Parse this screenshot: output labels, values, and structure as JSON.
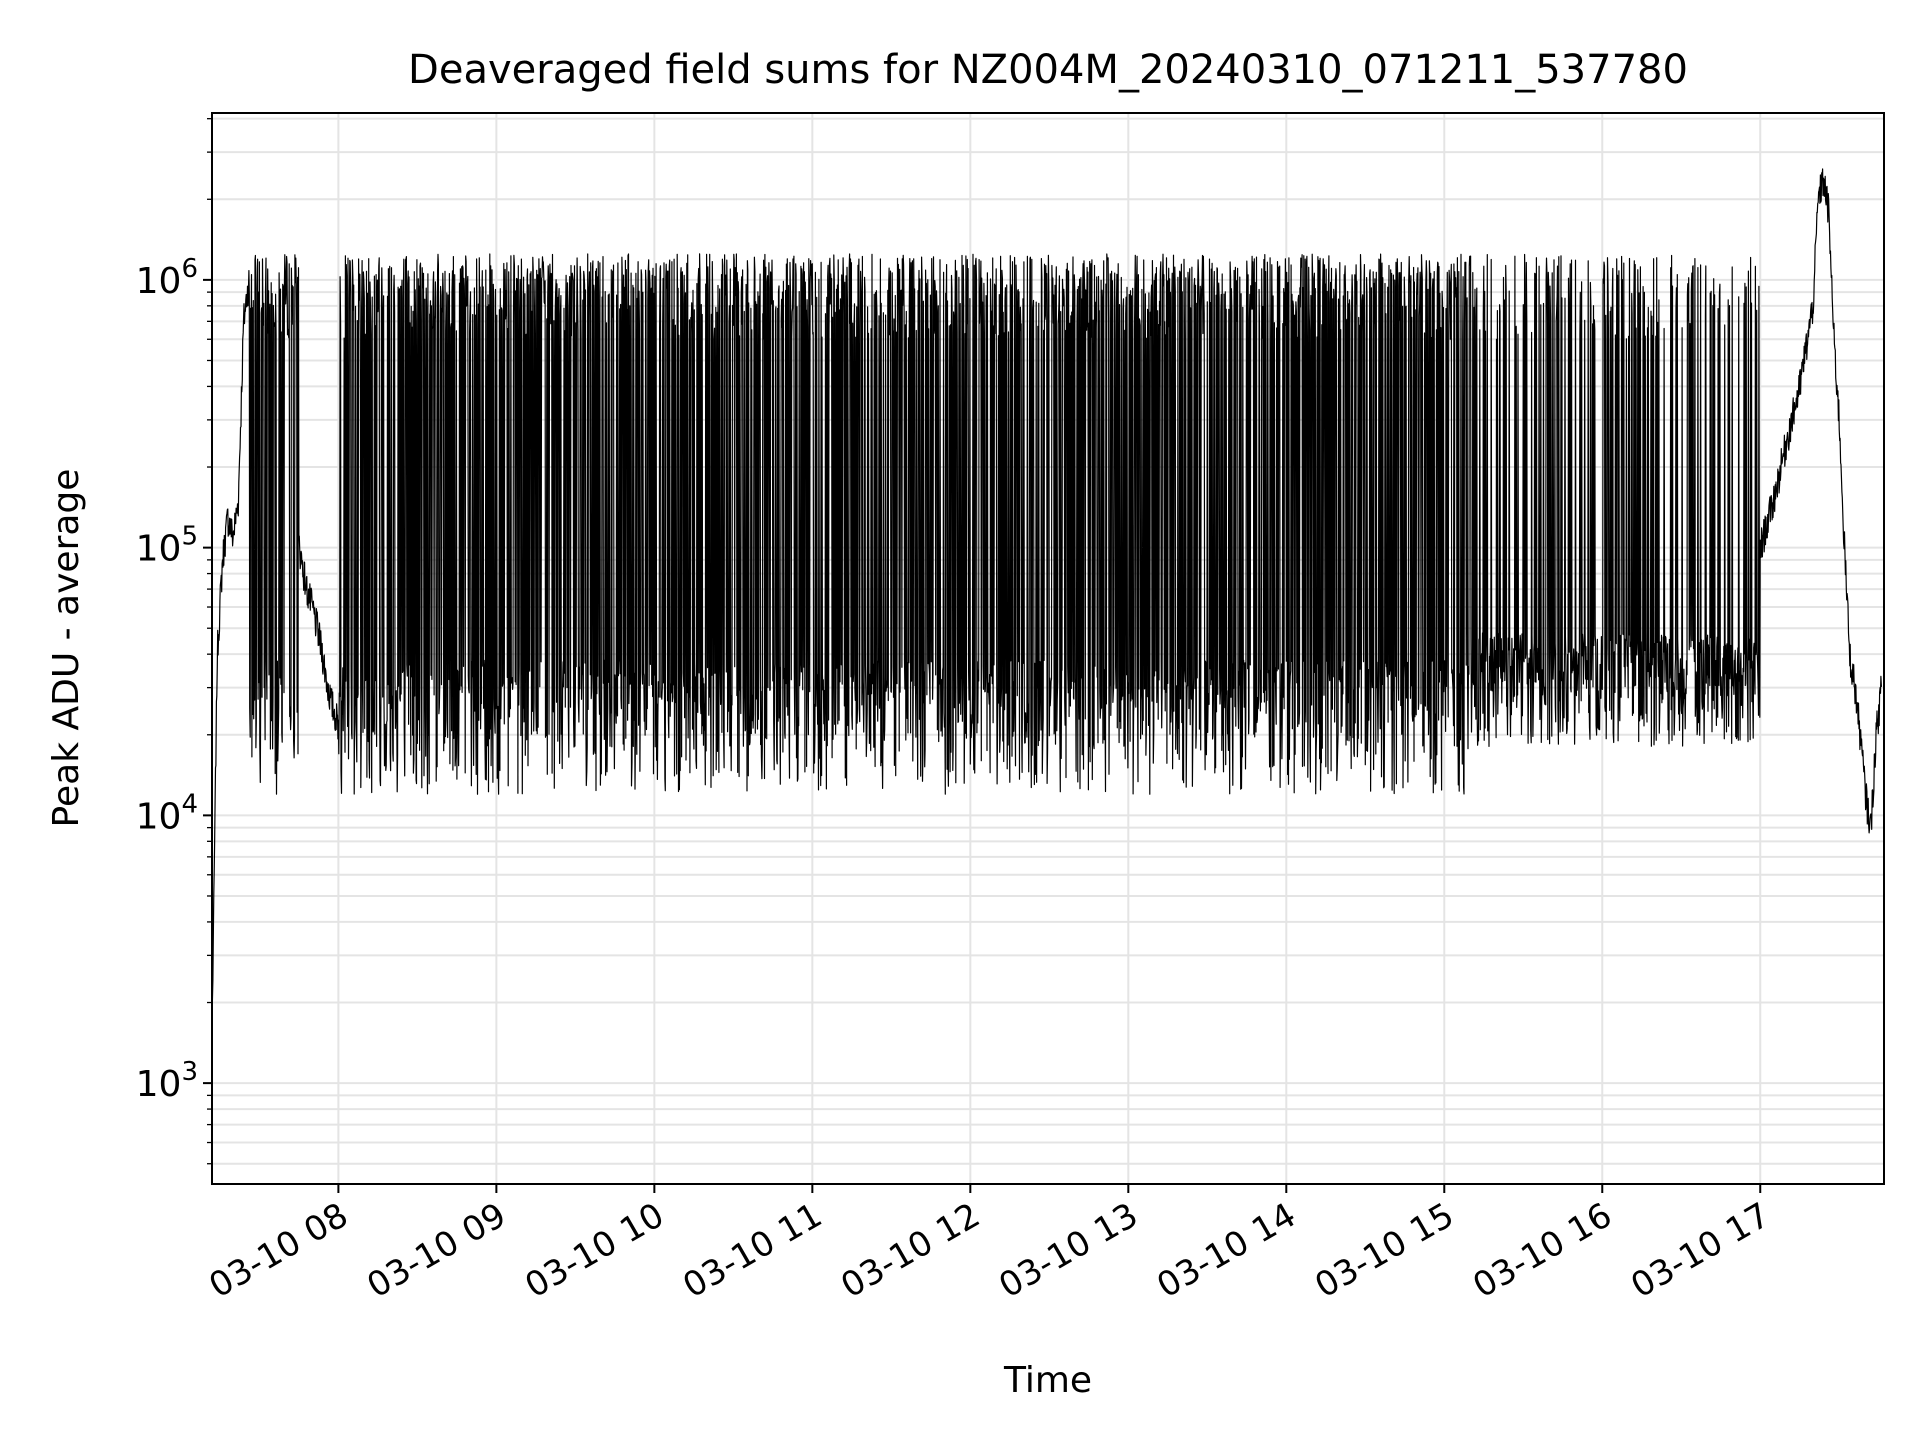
{
  "chart_data": {
    "type": "line",
    "title": "Deaveraged field sums for NZ004M_20240310_071211_537780",
    "xlabel": "Time",
    "ylabel": "Peak ADU - average",
    "yscale": "log",
    "ylim": [
      420,
      4200000
    ],
    "xlim": [
      "2024-03-10 07:12",
      "2024-03-10 17:47"
    ],
    "grid": true,
    "line_color": "#000000",
    "x_tick_labels": [
      "03-10 08",
      "03-10 09",
      "03-10 10",
      "03-10 11",
      "03-10 12",
      "03-10 13",
      "03-10 14",
      "03-10 15",
      "03-10 16",
      "03-10 17"
    ],
    "y_tick_labels": [
      {
        "base": "10",
        "exp": "3"
      },
      {
        "base": "10",
        "exp": "4"
      },
      {
        "base": "10",
        "exp": "5"
      },
      {
        "base": "10",
        "exp": "6"
      }
    ],
    "series": [
      {
        "x": [
          "2024-03-10 07:12",
          "2024-03-10 07:14",
          "2024-03-10 07:16",
          "2024-03-10 07:18",
          "2024-03-10 07:20",
          "2024-03-10 07:22",
          "2024-03-10 07:24",
          "2024-03-10 07:26",
          "2024-03-10 07:28",
          "2024-03-10 07:30",
          "2024-03-10 07:32",
          "2024-03-10 07:34",
          "2024-03-10 07:36",
          "2024-03-10 07:38",
          "2024-03-10 07:40",
          "2024-03-10 07:42",
          "2024-03-10 07:44",
          "2024-03-10 07:46",
          "2024-03-10 07:48",
          "2024-03-10 07:50",
          "2024-03-10 07:52",
          "2024-03-10 07:54",
          "2024-03-10 07:56",
          "2024-03-10 07:58",
          "2024-03-10 08:00",
          "2024-03-10 08:02",
          "2024-03-10 08:04",
          "2024-03-10 08:06",
          "2024-03-10 08:10",
          "2024-03-10 08:15",
          "2024-03-10 08:20",
          "2024-03-10 08:25",
          "2024-03-10 08:30",
          "2024-03-10 08:35",
          "2024-03-10 08:40",
          "2024-03-10 08:45",
          "2024-03-10 08:50",
          "2024-03-10 08:55",
          "2024-03-10 09:00",
          "2024-03-10 09:05",
          "2024-03-10 09:10",
          "2024-03-10 09:15",
          "2024-03-10 09:20",
          "2024-03-10 09:25",
          "2024-03-10 09:30",
          "2024-03-10 09:35",
          "2024-03-10 09:40",
          "2024-03-10 09:45",
          "2024-03-10 09:50",
          "2024-03-10 09:55",
          "2024-03-10 10:00",
          "2024-03-10 10:10",
          "2024-03-10 10:20",
          "2024-03-10 10:30",
          "2024-03-10 10:40",
          "2024-03-10 10:50",
          "2024-03-10 11:00",
          "2024-03-10 11:15",
          "2024-03-10 11:30",
          "2024-03-10 11:45",
          "2024-03-10 12:00",
          "2024-03-10 12:15",
          "2024-03-10 12:30",
          "2024-03-10 12:45",
          "2024-03-10 13:00",
          "2024-03-10 13:15",
          "2024-03-10 13:30",
          "2024-03-10 13:45",
          "2024-03-10 14:00",
          "2024-03-10 14:15",
          "2024-03-10 14:30",
          "2024-03-10 14:45",
          "2024-03-10 15:00",
          "2024-03-10 15:15",
          "2024-03-10 15:30",
          "2024-03-10 15:45",
          "2024-03-10 16:00",
          "2024-03-10 16:15",
          "2024-03-10 16:30",
          "2024-03-10 16:45",
          "2024-03-10 16:55",
          "2024-03-10 17:00",
          "2024-03-10 17:05",
          "2024-03-10 17:10",
          "2024-03-10 17:15",
          "2024-03-10 17:20",
          "2024-03-10 17:22",
          "2024-03-10 17:24",
          "2024-03-10 17:26",
          "2024-03-10 17:28",
          "2024-03-10 17:30",
          "2024-03-10 17:32",
          "2024-03-10 17:34",
          "2024-03-10 17:36",
          "2024-03-10 17:38",
          "2024-03-10 17:40",
          "2024-03-10 17:42",
          "2024-03-10 17:44",
          "2024-03-10 17:46"
        ],
        "y": [
          1500,
          40000,
          90000,
          130000,
          110000,
          150000,
          700000,
          1000000,
          900000,
          1000000,
          700000,
          500000,
          400000,
          350000,
          200000,
          150000,
          120000,
          90000,
          70000,
          60000,
          50000,
          40000,
          30000,
          25000,
          22000,
          24000,
          22000,
          25000,
          23000,
          25000,
          28000,
          30000,
          35000,
          40000,
          50000,
          60000,
          80000,
          100000,
          150000,
          200000,
          250000,
          300000,
          400000,
          450000,
          500000,
          520000,
          550000,
          580000,
          600000,
          600000,
          620000,
          620000,
          600000,
          620000,
          600000,
          580000,
          600000,
          620000,
          600000,
          620000,
          600000,
          620000,
          620000,
          600000,
          620000,
          620000,
          600000,
          580000,
          550000,
          500000,
          450000,
          300000,
          150000,
          60000,
          35000,
          30000,
          28000,
          26000,
          26000,
          28000,
          30000,
          100000,
          150000,
          250000,
          400000,
          800000,
          2000000,
          2400000,
          1800000,
          600000,
          300000,
          100000,
          40000,
          30000,
          20000,
          12000,
          9000,
          20000,
          30000
        ]
      }
    ]
  }
}
